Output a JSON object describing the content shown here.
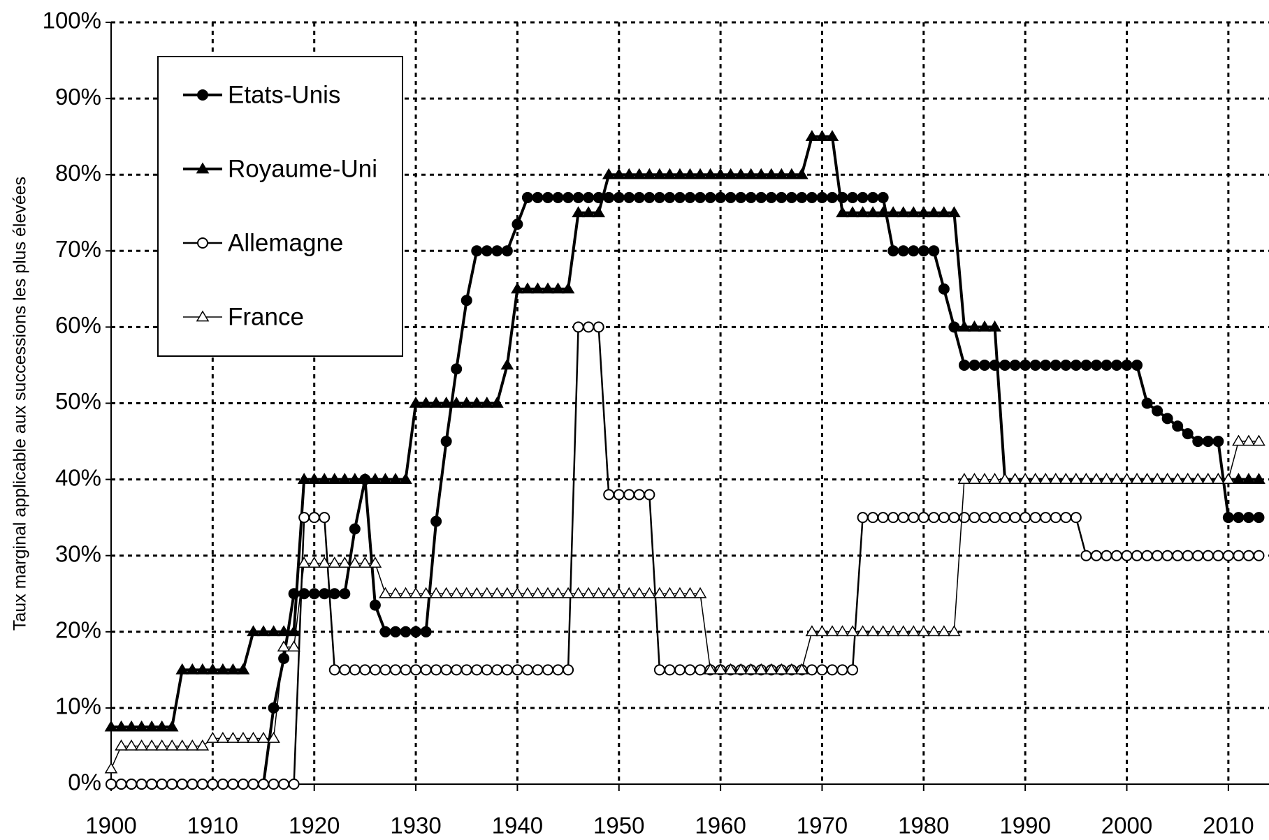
{
  "chart_data": {
    "type": "line",
    "y_label": "Taux marginal applicable aux successions les plus élevées",
    "x": [
      1900,
      1901,
      1902,
      1903,
      1904,
      1905,
      1906,
      1907,
      1908,
      1909,
      1910,
      1911,
      1912,
      1913,
      1914,
      1915,
      1916,
      1917,
      1918,
      1919,
      1920,
      1921,
      1922,
      1923,
      1924,
      1925,
      1926,
      1927,
      1928,
      1929,
      1930,
      1931,
      1932,
      1933,
      1934,
      1935,
      1936,
      1937,
      1938,
      1939,
      1940,
      1941,
      1942,
      1943,
      1944,
      1945,
      1946,
      1947,
      1948,
      1949,
      1950,
      1951,
      1952,
      1953,
      1954,
      1955,
      1956,
      1957,
      1958,
      1959,
      1960,
      1961,
      1962,
      1963,
      1964,
      1965,
      1966,
      1967,
      1968,
      1969,
      1970,
      1971,
      1972,
      1973,
      1974,
      1975,
      1976,
      1977,
      1978,
      1979,
      1980,
      1981,
      1982,
      1983,
      1984,
      1985,
      1986,
      1987,
      1988,
      1989,
      1990,
      1991,
      1992,
      1993,
      1994,
      1995,
      1996,
      1997,
      1998,
      1999,
      2000,
      2001,
      2002,
      2003,
      2004,
      2005,
      2006,
      2007,
      2008,
      2009,
      2010,
      2011,
      2012,
      2013
    ],
    "series": [
      {
        "name": "Etats-Unis",
        "color": "#000000",
        "marker": "circle",
        "filled": true,
        "values": [
          0,
          0,
          0,
          0,
          0,
          0,
          0,
          0,
          0,
          0,
          0,
          0,
          0,
          0,
          0,
          0,
          10,
          16.5,
          25,
          25,
          25,
          25,
          25,
          25,
          33.5,
          40,
          23.5,
          20,
          20,
          20,
          20,
          20,
          34.5,
          45,
          54.5,
          63.5,
          70,
          70,
          70,
          70,
          73.5,
          77,
          77,
          77,
          77,
          77,
          77,
          77,
          77,
          77,
          77,
          77,
          77,
          77,
          77,
          77,
          77,
          77,
          77,
          77,
          77,
          77,
          77,
          77,
          77,
          77,
          77,
          77,
          77,
          77,
          77,
          77,
          77,
          77,
          77,
          77,
          77,
          70,
          70,
          70,
          70,
          70,
          65,
          60,
          55,
          55,
          55,
          55,
          55,
          55,
          55,
          55,
          55,
          55,
          55,
          55,
          55,
          55,
          55,
          55,
          55,
          55,
          50,
          49,
          48,
          47,
          46,
          45,
          45,
          45,
          35,
          35,
          35,
          35
        ]
      },
      {
        "name": "Royaume-Uni",
        "color": "#000000",
        "marker": "triangle",
        "filled": true,
        "values": [
          7.5,
          7.5,
          7.5,
          7.5,
          7.5,
          7.5,
          7.5,
          15,
          15,
          15,
          15,
          15,
          15,
          15,
          20,
          20,
          20,
          20,
          20,
          40,
          40,
          40,
          40,
          40,
          40,
          40,
          40,
          40,
          40,
          40,
          50,
          50,
          50,
          50,
          50,
          50,
          50,
          50,
          50,
          55,
          65,
          65,
          65,
          65,
          65,
          65,
          75,
          75,
          75,
          80,
          80,
          80,
          80,
          80,
          80,
          80,
          80,
          80,
          80,
          80,
          80,
          80,
          80,
          80,
          80,
          80,
          80,
          80,
          80,
          85,
          85,
          85,
          75,
          75,
          75,
          75,
          75,
          75,
          75,
          75,
          75,
          75,
          75,
          75,
          60,
          60,
          60,
          60,
          40,
          40,
          40,
          40,
          40,
          40,
          40,
          40,
          40,
          40,
          40,
          40,
          40,
          40,
          40,
          40,
          40,
          40,
          40,
          40,
          40,
          40,
          40,
          40,
          40,
          40
        ]
      },
      {
        "name": "Allemagne",
        "color": "#000000",
        "marker": "circle",
        "filled": false,
        "values": [
          0,
          0,
          0,
          0,
          0,
          0,
          0,
          0,
          0,
          0,
          0,
          0,
          0,
          0,
          0,
          0,
          0,
          0,
          0,
          35,
          35,
          35,
          15,
          15,
          15,
          15,
          15,
          15,
          15,
          15,
          15,
          15,
          15,
          15,
          15,
          15,
          15,
          15,
          15,
          15,
          15,
          15,
          15,
          15,
          15,
          15,
          60,
          60,
          60,
          38,
          38,
          38,
          38,
          38,
          15,
          15,
          15,
          15,
          15,
          15,
          15,
          15,
          15,
          15,
          15,
          15,
          15,
          15,
          15,
          15,
          15,
          15,
          15,
          15,
          35,
          35,
          35,
          35,
          35,
          35,
          35,
          35,
          35,
          35,
          35,
          35,
          35,
          35,
          35,
          35,
          35,
          35,
          35,
          35,
          35,
          35,
          30,
          30,
          30,
          30,
          30,
          30,
          30,
          30,
          30,
          30,
          30,
          30,
          30,
          30,
          30,
          30,
          30,
          30
        ]
      },
      {
        "name": "France",
        "color": "#000000",
        "marker": "triangle",
        "filled": false,
        "values": [
          2,
          5,
          5,
          5,
          5,
          5,
          5,
          5,
          5,
          5,
          6,
          6,
          6,
          6,
          6,
          6,
          6,
          18,
          18,
          29,
          29,
          29,
          29,
          29,
          29,
          29,
          29,
          25,
          25,
          25,
          25,
          25,
          25,
          25,
          25,
          25,
          25,
          25,
          25,
          25,
          25,
          25,
          25,
          25,
          25,
          25,
          25,
          25,
          25,
          25,
          25,
          25,
          25,
          25,
          25,
          25,
          25,
          25,
          25,
          15,
          15,
          15,
          15,
          15,
          15,
          15,
          15,
          15,
          15,
          20,
          20,
          20,
          20,
          20,
          20,
          20,
          20,
          20,
          20,
          20,
          20,
          20,
          20,
          20,
          40,
          40,
          40,
          40,
          40,
          40,
          40,
          40,
          40,
          40,
          40,
          40,
          40,
          40,
          40,
          40,
          40,
          40,
          40,
          40,
          40,
          40,
          40,
          40,
          40,
          40,
          40,
          45,
          45,
          45
        ]
      }
    ],
    "xlim": [
      1900,
      2014
    ],
    "ylim": [
      0,
      100
    ],
    "xticks": [
      1900,
      1910,
      1920,
      1930,
      1940,
      1950,
      1960,
      1970,
      1980,
      1990,
      2000,
      2010
    ],
    "yticks": [
      {
        "value": 0,
        "label": "0%"
      },
      {
        "value": 10,
        "label": "10%"
      },
      {
        "value": 20,
        "label": "20%"
      },
      {
        "value": 30,
        "label": "30%"
      },
      {
        "value": 40,
        "label": "40%"
      },
      {
        "value": 50,
        "label": "50%"
      },
      {
        "value": 60,
        "label": "60%"
      },
      {
        "value": 70,
        "label": "70%"
      },
      {
        "value": 80,
        "label": "80%"
      },
      {
        "value": 90,
        "label": "90%"
      },
      {
        "value": 100,
        "label": "100%"
      }
    ],
    "grid": true,
    "legend": "upper left"
  }
}
